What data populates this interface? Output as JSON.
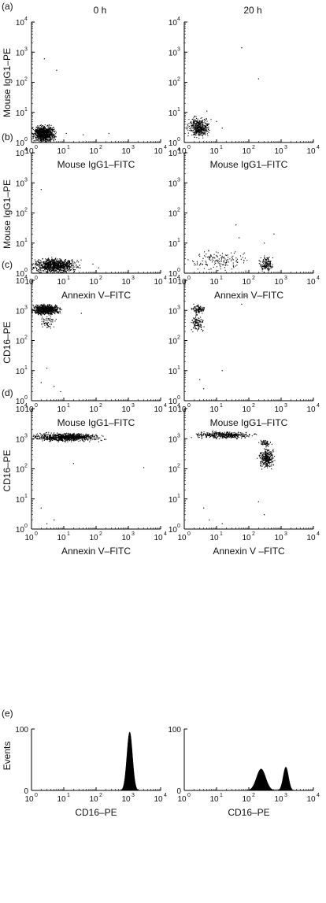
{
  "columns": [
    "0 h",
    "20 h"
  ],
  "chart_data": [
    {
      "type": "scatter",
      "panel": "(a)",
      "ylabel": "Mouse IgG1–PE",
      "xscale": "log",
      "yscale": "log",
      "xlim": [
        1,
        10000
      ],
      "ylim": [
        1,
        10000
      ],
      "xticks": [
        1,
        10,
        100,
        1000,
        10000
      ],
      "yticks": [
        1,
        10,
        100,
        1000,
        10000
      ],
      "plots": [
        {
          "column": "0 h",
          "xlabel": "Mouse IgG1–FITC",
          "clusters": [
            {
              "xlog": [
                0.0,
                0.75
              ],
              "ylog": [
                0.0,
                0.58
              ],
              "n": 900
            }
          ],
          "points": [
            [
              3.5,
              3
            ],
            [
              12,
              2
            ],
            [
              40,
              1.8
            ],
            [
              250,
              2
            ],
            [
              2.5,
              600
            ],
            [
              6,
              250
            ]
          ]
        },
        {
          "column": "20 h",
          "xlabel": "Mouse IgG1–FITC",
          "clusters": [
            {
              "xlog": [
                0.1,
                0.8
              ],
              "ylog": [
                0.15,
                0.85
              ],
              "n": 450
            }
          ],
          "points": [
            [
              60,
              1400
            ],
            [
              200,
              130
            ],
            [
              10,
              5
            ],
            [
              15,
              3
            ],
            [
              5,
              11
            ]
          ]
        }
      ]
    },
    {
      "type": "scatter",
      "panel": "(b)",
      "ylabel": "Mouse IgG1–PE",
      "xscale": "log",
      "yscale": "log",
      "xlim": [
        1,
        10000
      ],
      "ylim": [
        1,
        10000
      ],
      "xticks": [
        1,
        10,
        100,
        1000,
        10000
      ],
      "yticks": [
        1,
        10,
        100,
        1000,
        10000
      ],
      "plots": [
        {
          "column": "0 h",
          "xlabel": "Annexin V–FITC",
          "clusters": [
            {
              "xlog": [
                0.0,
                1.5
              ],
              "ylog": [
                0.0,
                0.5
              ],
              "n": 900
            }
          ],
          "points": [
            [
              2,
              600
            ],
            [
              80,
              2
            ],
            [
              120,
              1.5
            ]
          ]
        },
        {
          "column": "20 h",
          "xlabel": "Annexin V–FITC",
          "clusters": [
            {
              "xlog": [
                0.1,
                2.0
              ],
              "ylog": [
                0.05,
                0.75
              ],
              "n": 160
            },
            {
              "xlog": [
                2.3,
                2.8
              ],
              "ylog": [
                0.0,
                0.6
              ],
              "n": 150
            }
          ],
          "points": [
            [
              40,
              40
            ],
            [
              50,
              15
            ],
            [
              300,
              10
            ],
            [
              600,
              20
            ]
          ]
        }
      ]
    },
    {
      "type": "scatter",
      "panel": "(c)",
      "ylabel": "CD16–PE",
      "xscale": "log",
      "yscale": "log",
      "xlim": [
        1,
        10000
      ],
      "ylim": [
        1,
        10000
      ],
      "xticks": [
        1,
        10,
        100,
        1000,
        10000
      ],
      "yticks": [
        1,
        10,
        100,
        1000,
        10000
      ],
      "plots": [
        {
          "column": "0 h",
          "xlabel": "Mouse IgG1–FITC",
          "clusters": [
            {
              "xlog": [
                0.0,
                0.9
              ],
              "ylog": [
                2.85,
                3.2
              ],
              "n": 800
            },
            {
              "xlog": [
                0.25,
                0.75
              ],
              "ylog": [
                2.3,
                2.85
              ],
              "n": 60
            }
          ],
          "points": [
            [
              35,
              800
            ],
            [
              3,
              12
            ],
            [
              5,
              3
            ],
            [
              2,
              4
            ],
            [
              8,
              2
            ]
          ]
        },
        {
          "column": "20 h",
          "xlabel": "Mouse IgG1–FITC",
          "clusters": [
            {
              "xlog": [
                0.2,
                0.7
              ],
              "ylog": [
                2.9,
                3.2
              ],
              "n": 110
            },
            {
              "xlog": [
                0.2,
                0.6
              ],
              "ylog": [
                2.3,
                2.9
              ],
              "n": 110
            }
          ],
          "points": [
            [
              80,
              3000
            ],
            [
              60,
              1600
            ],
            [
              15,
              10
            ],
            [
              3,
              5
            ],
            [
              4,
              2.5
            ]
          ]
        }
      ]
    },
    {
      "type": "scatter",
      "panel": "(d)",
      "ylabel": "CD16–PE",
      "xscale": "log",
      "yscale": "log",
      "xlim": [
        1,
        10000
      ],
      "ylim": [
        1,
        10000
      ],
      "xticks": [
        1,
        10,
        100,
        1000,
        10000
      ],
      "yticks": [
        1,
        10,
        100,
        1000,
        10000
      ],
      "plots": [
        {
          "column": "0 h",
          "xlabel": "Annexin V–FITC",
          "clusters": [
            {
              "xlog": [
                0.0,
                2.2
              ],
              "ylog": [
                2.9,
                3.2
              ],
              "n": 900
            }
          ],
          "points": [
            [
              3000,
              110
            ],
            [
              2,
              5
            ],
            [
              5,
              2
            ],
            [
              3,
              1.5
            ],
            [
              20,
              150
            ]
          ]
        },
        {
          "column": "20 h",
          "xlabel": "Annexin V –FITC",
          "clusters": [
            {
              "xlog": [
                0.3,
                2.2
              ],
              "ylog": [
                3.0,
                3.25
              ],
              "n": 420
            },
            {
              "xlog": [
                2.3,
                2.8
              ],
              "ylog": [
                2.0,
                2.7
              ],
              "n": 300
            },
            {
              "xlog": [
                2.3,
                2.7
              ],
              "ylog": [
                2.7,
                3.0
              ],
              "n": 60
            }
          ],
          "points": [
            [
              600,
              3000
            ],
            [
              4,
              5
            ],
            [
              6,
              2
            ],
            [
              200,
              8
            ],
            [
              15,
              1.5
            ],
            [
              300,
              3
            ]
          ]
        }
      ]
    },
    {
      "type": "area",
      "panel": "(e)",
      "ylabel": "Events",
      "xscale": "log",
      "xlim": [
        1,
        10000
      ],
      "ylim": [
        0,
        100
      ],
      "xticks": [
        1,
        10,
        100,
        1000,
        10000
      ],
      "yticks": [
        0,
        100
      ],
      "plots": [
        {
          "column": "0 h",
          "xlabel": "CD16–PE",
          "peaks": [
            {
              "center": 1100,
              "height": 95,
              "width_log": 0.085
            }
          ]
        },
        {
          "column": "20 h",
          "xlabel": "CD16–PE",
          "peaks": [
            {
              "center": 240,
              "height": 35,
              "width_log": 0.14
            },
            {
              "center": 1400,
              "height": 38,
              "width_log": 0.08
            }
          ]
        }
      ]
    }
  ]
}
